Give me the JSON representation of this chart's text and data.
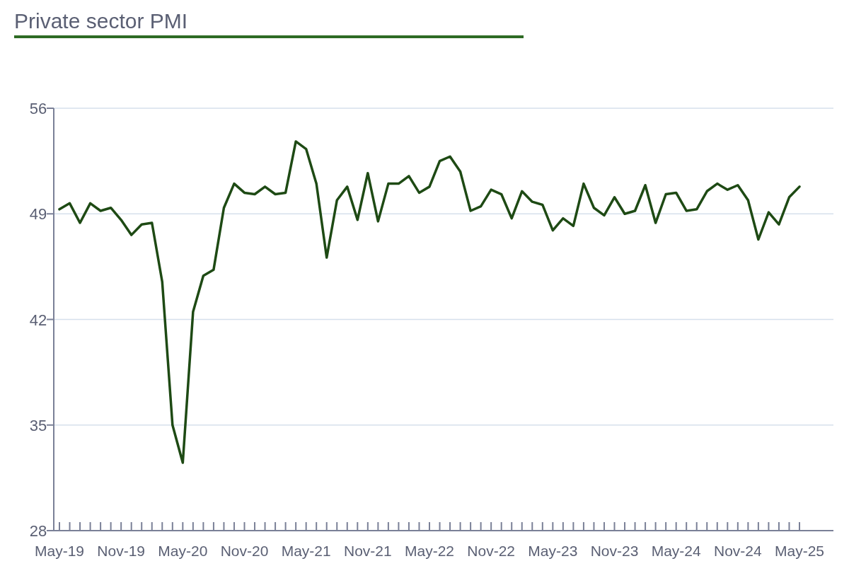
{
  "chart_data": {
    "type": "line",
    "title": "Private sector PMI",
    "categories": [
      "May-19",
      null,
      null,
      null,
      null,
      null,
      "Nov-19",
      null,
      null,
      null,
      null,
      null,
      "May-20",
      null,
      null,
      null,
      null,
      null,
      "Nov-20",
      null,
      null,
      null,
      null,
      null,
      "May-21",
      null,
      null,
      null,
      null,
      null,
      "Nov-21",
      null,
      null,
      null,
      null,
      null,
      "May-22",
      null,
      null,
      null,
      null,
      null,
      "Nov-22",
      null,
      null,
      null,
      null,
      null,
      "May-23",
      null,
      null,
      null,
      null,
      null,
      "Nov-23",
      null,
      null,
      null,
      null,
      null,
      "May-24",
      null,
      null,
      null,
      null,
      null,
      "Nov-24",
      null,
      null,
      null,
      null,
      null,
      "May-25"
    ],
    "series": [
      {
        "color": "#1e4a14",
        "values": [
          49.3,
          49.7,
          48.4,
          49.7,
          49.2,
          49.4,
          48.6,
          47.6,
          48.3,
          48.4,
          44.5,
          35.0,
          32.5,
          42.5,
          44.9,
          45.3,
          49.4,
          51.0,
          50.4,
          50.3,
          50.8,
          50.3,
          50.4,
          53.8,
          53.3,
          51.0,
          46.1,
          49.9,
          50.8,
          48.6,
          51.7,
          48.5,
          51.0,
          51.0,
          51.5,
          50.4,
          50.8,
          52.5,
          52.8,
          51.8,
          49.2,
          49.5,
          50.6,
          50.3,
          48.7,
          50.5,
          49.8,
          49.6,
          47.9,
          48.7,
          48.2,
          51.0,
          49.4,
          48.9,
          50.1,
          49.0,
          49.2,
          50.9,
          48.4,
          50.3,
          50.4,
          49.2,
          49.3,
          50.5,
          51.0,
          50.6,
          50.9,
          49.9,
          47.3,
          49.1,
          48.3,
          50.1,
          50.8
        ]
      }
    ],
    "ylim": [
      28,
      56
    ],
    "yticks": [
      28,
      35,
      42,
      49,
      56
    ],
    "grid": "y",
    "marker": "none",
    "line_style": "solid"
  }
}
